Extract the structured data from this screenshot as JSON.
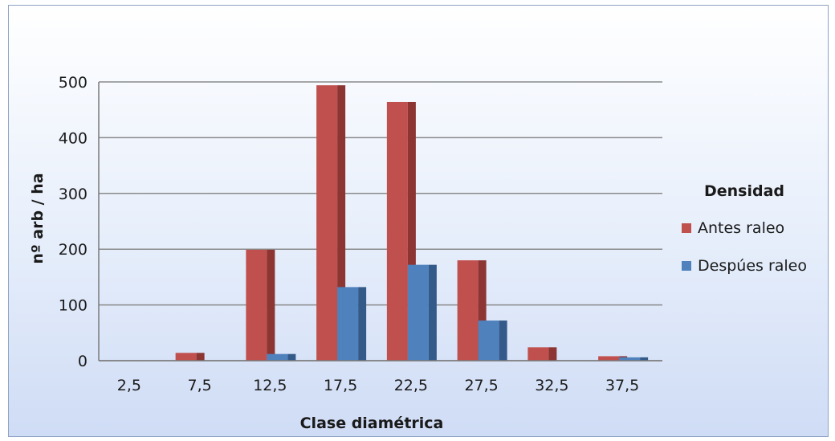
{
  "chart_data": {
    "type": "bar",
    "categories": [
      "2,5",
      "7,5",
      "12,5",
      "17,5",
      "22,5",
      "27,5",
      "32,5",
      "37,5"
    ],
    "series": [
      {
        "name": "Antes raleo",
        "values": [
          0,
          14,
          199,
          494,
          464,
          180,
          24,
          8
        ],
        "color": "#c0504d",
        "shade": "#8c3532"
      },
      {
        "name": "Despúes raleo",
        "values": [
          0,
          0,
          12,
          132,
          172,
          72,
          0,
          6
        ],
        "color": "#4f81bd",
        "shade": "#345a8a"
      }
    ],
    "xlabel": "Clase diamétrica",
    "ylabel": "nº arb / ha",
    "ylim": [
      0,
      500
    ],
    "yticks": [
      "0",
      "100",
      "200",
      "300",
      "400",
      "500"
    ],
    "grid": true,
    "legend_title": "Densidad",
    "legend_position": "right"
  }
}
